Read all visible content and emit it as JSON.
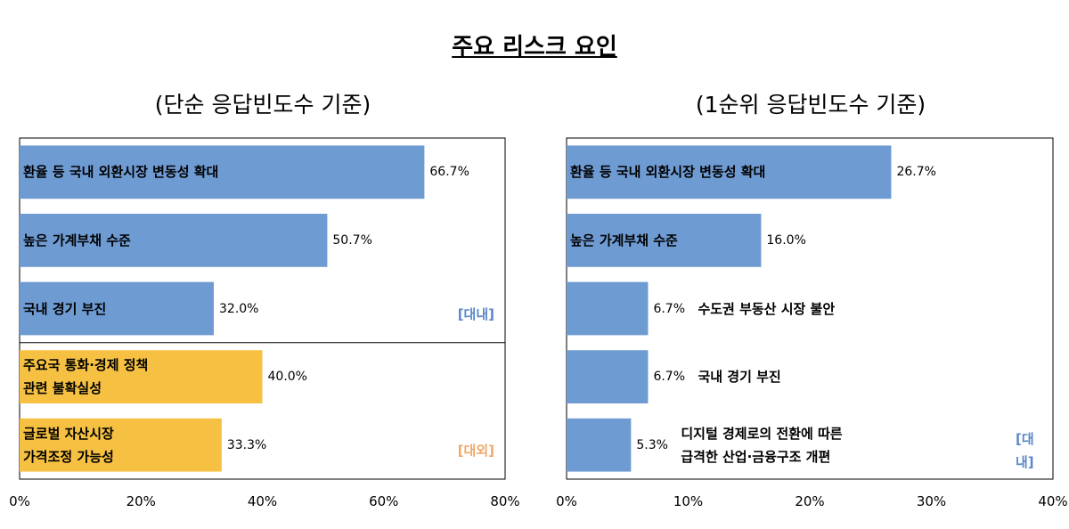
{
  "title": "주요 리스크 요인",
  "chart_data": [
    {
      "type": "hbar",
      "subtitle": "(단순 응답빈도수 기준)",
      "xlim": [
        0,
        80
      ],
      "xticks": [
        {
          "value": 0,
          "label": "0%"
        },
        {
          "value": 20,
          "label": "20%"
        },
        {
          "value": 40,
          "label": "40%"
        },
        {
          "value": 60,
          "label": "60%"
        },
        {
          "value": 80,
          "label": "80%"
        }
      ],
      "groups": [
        {
          "label": "[대내]",
          "label_color": "#5b87c9",
          "color": "#6f9bd3",
          "categories": [
            "환율 등 국내 외환시장 변동성 확대",
            "높은 가계부채 수준",
            "국내 경기 부진"
          ],
          "values": [
            66.7,
            50.7,
            32.0
          ],
          "value_labels": [
            "66.7%",
            "50.7%",
            "32.0%"
          ]
        },
        {
          "label": "[대외]",
          "label_color": "#f0a868",
          "color": "#f6c142",
          "categories": [
            "주요국 통화·경제 정책\n관련 불확실성",
            "글로벌 자산시장\n가격조정 가능성"
          ],
          "values": [
            40.0,
            33.3
          ],
          "value_labels": [
            "40.0%",
            "33.3%"
          ]
        }
      ]
    },
    {
      "type": "hbar",
      "subtitle": "(1순위 응답빈도수 기준)",
      "xlim": [
        0,
        40
      ],
      "xticks": [
        {
          "value": 0,
          "label": "0%"
        },
        {
          "value": 10,
          "label": "10%"
        },
        {
          "value": 20,
          "label": "20%"
        },
        {
          "value": 30,
          "label": "30%"
        },
        {
          "value": 40,
          "label": "40%"
        }
      ],
      "groups": [
        {
          "label": "[대내]",
          "label_color": "#5b87c9",
          "color": "#6f9bd3",
          "categories": [
            "환율 등 국내 외환시장 변동성 확대",
            "높은 가계부채 수준",
            "수도권 부동산 시장 불안",
            "국내 경기 부진",
            "디지털 경제로의 전환에 따른\n급격한 산업·금융구조 개편"
          ],
          "values": [
            26.7,
            16.0,
            6.7,
            6.7,
            5.3
          ],
          "value_labels": [
            "26.7%",
            "16.0%",
            "6.7%",
            "6.7%",
            "5.3%"
          ]
        }
      ]
    }
  ]
}
